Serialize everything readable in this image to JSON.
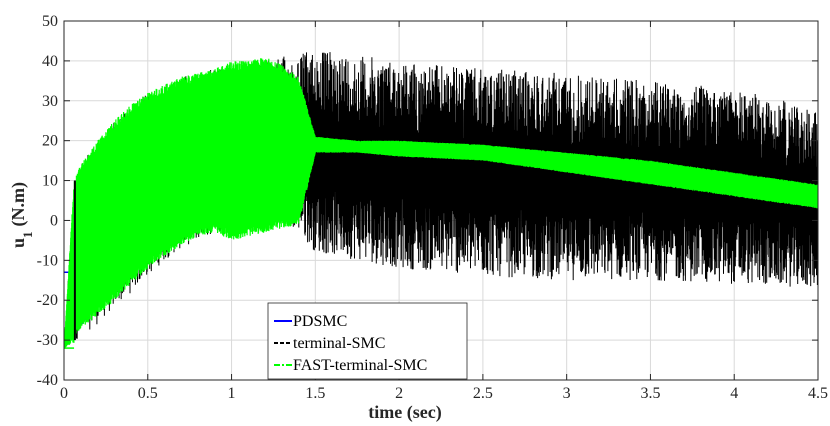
{
  "chart_data": {
    "type": "line",
    "title": "",
    "xlabel": "time (sec)",
    "ylabel_main": "u",
    "ylabel_sub": "1",
    "ylabel_unit": "(N.m)",
    "xlim": [
      0,
      4.5
    ],
    "ylim": [
      -40,
      50
    ],
    "xticks": [
      "0",
      "0.5",
      "1",
      "1.5",
      "2",
      "2.5",
      "3",
      "3.5",
      "4",
      "4.5"
    ],
    "xtick_values": [
      0,
      0.5,
      1,
      1.5,
      2,
      2.5,
      3,
      3.5,
      4,
      4.5
    ],
    "yticks": [
      "-40",
      "-30",
      "-20",
      "-10",
      "0",
      "10",
      "20",
      "30",
      "40",
      "50"
    ],
    "ytick_values": [
      -40,
      -30,
      -20,
      -10,
      0,
      10,
      20,
      30,
      40,
      50
    ],
    "grid": true,
    "legend_position": "bottom-center",
    "series": [
      {
        "name": "PDSMC",
        "color": "#0000ff",
        "style": "solid",
        "x": [
          0,
          0.06,
          0.07,
          0.3,
          0.6,
          0.9,
          1.2,
          1.5,
          1.85
        ],
        "y": [
          -13,
          -13,
          -28,
          -15,
          2,
          8,
          12,
          16,
          18
        ]
      },
      {
        "name": "terminal-SMC",
        "color": "#000000",
        "style": "dashed",
        "envelope_x": [
          0,
          0.06,
          0.07,
          0.1,
          0.2,
          0.3,
          0.4,
          0.5,
          0.6,
          0.7,
          0.8,
          0.9,
          1.0,
          1.1,
          1.2,
          1.3,
          1.4,
          1.5,
          2.0,
          2.5,
          3.0,
          3.5,
          4.0,
          4.5
        ],
        "envelope_upper": [
          -32,
          10,
          11,
          14,
          20,
          25,
          29,
          32,
          34,
          36,
          37,
          38,
          38,
          39,
          40,
          41,
          42,
          43,
          40,
          38,
          37,
          35,
          33,
          28
        ],
        "envelope_lower": [
          -32,
          -31,
          -30,
          -29,
          -26,
          -22,
          -18,
          -14,
          -10,
          -7,
          -5,
          -3,
          -2,
          -1,
          -1,
          -1,
          -3,
          -8,
          -12,
          -14,
          -15,
          -15,
          -16,
          -17
        ]
      },
      {
        "name": "FAST-terminal-SMC",
        "color": "#00ff00",
        "style": "dashdot",
        "envelope_x": [
          0,
          0.06,
          0.07,
          0.1,
          0.2,
          0.3,
          0.4,
          0.5,
          0.6,
          0.7,
          0.8,
          0.9,
          1.0,
          1.1,
          1.2,
          1.3,
          1.4,
          1.5,
          1.75,
          2.0,
          2.5,
          3.0,
          3.5,
          4.0,
          4.5
        ],
        "envelope_upper": [
          -32,
          10,
          11,
          14,
          20,
          25,
          29,
          32,
          34,
          36,
          37,
          38,
          40,
          40,
          41,
          39,
          36,
          21,
          20,
          20,
          19,
          17,
          15,
          12,
          9
        ],
        "envelope_lower": [
          -32,
          -31,
          -29,
          -27,
          -24,
          -20,
          -16,
          -12,
          -9,
          -6,
          -4,
          -3,
          -5,
          -4,
          -3,
          -2,
          -1,
          17,
          17,
          16,
          15,
          12,
          9,
          6,
          3
        ]
      }
    ]
  }
}
